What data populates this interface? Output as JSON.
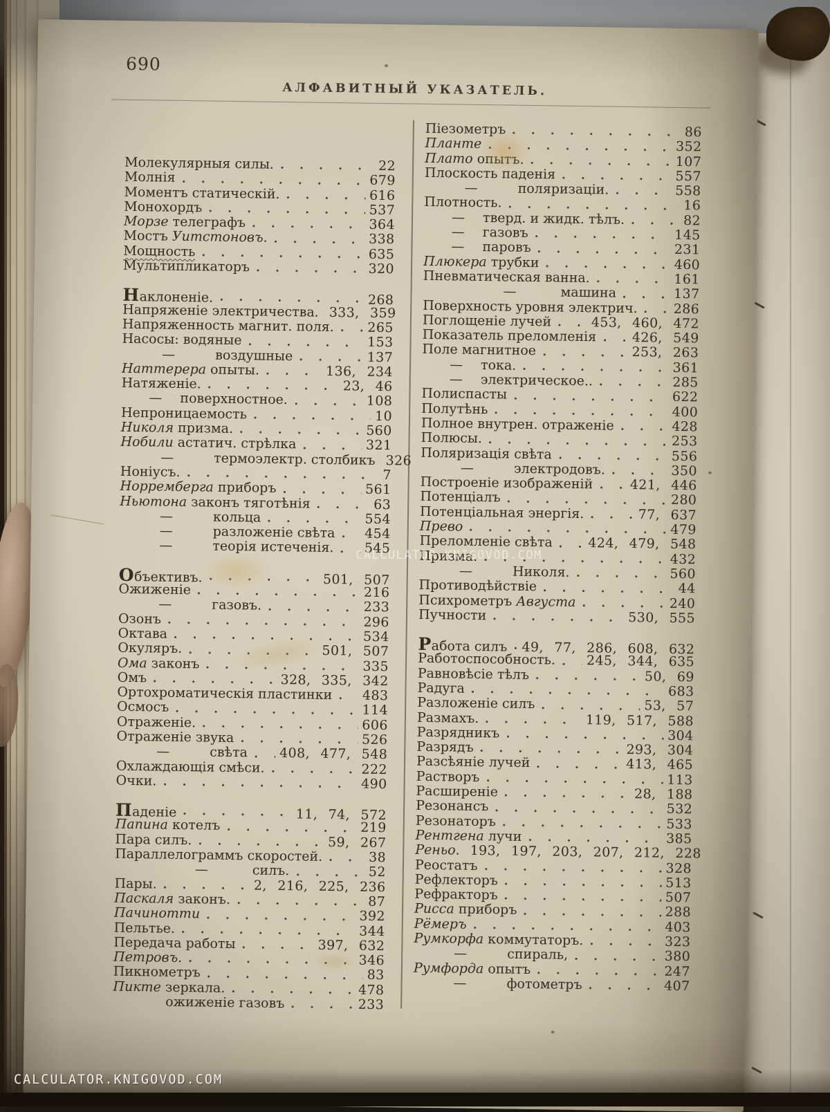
{
  "page": {
    "number": "690",
    "header": "АЛФАВИТНЫЙ УКАЗАТЕЛЬ."
  },
  "watermarks": {
    "center": "CALCULATOR.KNIGOVOD.COM",
    "bottom": "CALCULATOR.KNIGOVOD.COM"
  },
  "colors": {
    "paper": "#cfc7b0",
    "ink": "#352d21",
    "backdrop": "#8e9295",
    "watermark": "#ffffff"
  },
  "index": {
    "left": [
      [
        {
          "t": [
            [
              "Молекулярныя силы.",
              0
            ]
          ],
          "n": "22"
        },
        {
          "t": [
            [
              "Молнія",
              0
            ]
          ],
          "n": "679"
        },
        {
          "t": [
            [
              "Моментъ статическій.",
              0
            ]
          ],
          "n": "616"
        },
        {
          "t": [
            [
              "Монохордъ",
              0
            ]
          ],
          "n": "537"
        },
        {
          "t": [
            [
              "Морзе",
              1
            ],
            [
              " телеграфъ",
              0
            ]
          ],
          "n": "364"
        },
        {
          "t": [
            [
              "Мостъ ",
              0
            ],
            [
              "Уитстоновъ.",
              1
            ]
          ],
          "n": "338"
        },
        {
          "t": [
            [
              "Мощность",
              0
            ]
          ],
          "n": "635",
          "u": true
        },
        {
          "t": [
            [
              "Мультипликаторъ",
              0
            ]
          ],
          "n": "320"
        }
      ],
      [
        {
          "t": [
            [
              "Наклоненіе.",
              0
            ]
          ],
          "n": "268",
          "c": true
        },
        {
          "t": [
            [
              "Напряженіе электричества.",
              0
            ]
          ],
          "n": "333, 359"
        },
        {
          "t": [
            [
              "Напряженность магнит. поля.",
              0
            ]
          ],
          "n": "265"
        },
        {
          "t": [
            [
              "Насосы: водяные",
              0
            ]
          ],
          "n": "153"
        },
        {
          "t": [
            [
              "воздушные",
              0
            ]
          ],
          "n": "137",
          "d": 2
        },
        {
          "t": [
            [
              "Наттерера",
              1
            ],
            [
              " опыты.",
              0
            ]
          ],
          "n": "136, 234"
        },
        {
          "t": [
            [
              "Натяженіе.",
              0
            ]
          ],
          "n": "23, 46"
        },
        {
          "t": [
            [
              "поверхностное.",
              0
            ]
          ],
          "n": "108",
          "d": 1
        },
        {
          "t": [
            [
              "Непроницаемость",
              0
            ]
          ],
          "n": "10"
        },
        {
          "t": [
            [
              "Николя",
              1
            ],
            [
              " призма.",
              0
            ]
          ],
          "n": "560"
        },
        {
          "t": [
            [
              "Нобили",
              1
            ],
            [
              " астатич. стрѣлка",
              0
            ]
          ],
          "n": "321"
        },
        {
          "t": [
            [
              "термоэлектр. столбикъ",
              0
            ]
          ],
          "n": "326",
          "d": 2
        },
        {
          "t": [
            [
              "Ноніусъ.",
              0
            ]
          ],
          "n": "7"
        },
        {
          "t": [
            [
              "Норремберга",
              1
            ],
            [
              " приборъ",
              0
            ]
          ],
          "n": "561"
        },
        {
          "t": [
            [
              "Ньютона",
              1
            ],
            [
              " законъ тяготѣнія",
              0
            ]
          ],
          "n": "63"
        },
        {
          "t": [
            [
              "кольца",
              0
            ]
          ],
          "n": "554",
          "d": 2
        },
        {
          "t": [
            [
              "разложеніе свѣта",
              0
            ]
          ],
          "n": "454",
          "d": 2
        },
        {
          "t": [
            [
              "теорія истеченія.",
              0
            ]
          ],
          "n": "545",
          "d": 2
        }
      ],
      [
        {
          "t": [
            [
              "Объективъ.",
              0
            ]
          ],
          "n": "501, 507",
          "c": true
        },
        {
          "t": [
            [
              "Ожиженіе",
              0
            ]
          ],
          "n": "216"
        },
        {
          "t": [
            [
              "газовъ.",
              0
            ]
          ],
          "n": "233",
          "d": 2
        },
        {
          "t": [
            [
              "Озонъ",
              0
            ]
          ],
          "n": "296"
        },
        {
          "t": [
            [
              "Октава",
              0
            ]
          ],
          "n": "534"
        },
        {
          "t": [
            [
              "Окуляръ.",
              0
            ]
          ],
          "n": "501, 507"
        },
        {
          "t": [
            [
              "Ома",
              1
            ],
            [
              " законъ",
              0
            ]
          ],
          "n": "335"
        },
        {
          "t": [
            [
              "Омъ",
              0
            ]
          ],
          "n": "328, 335, 342"
        },
        {
          "t": [
            [
              "Ортохроматическія пластинки",
              0
            ]
          ],
          "n": "483"
        },
        {
          "t": [
            [
              "Осмосъ",
              0
            ]
          ],
          "n": "114"
        },
        {
          "t": [
            [
              "Отраженіе.",
              0
            ]
          ],
          "n": "606"
        },
        {
          "t": [
            [
              "Отраженіе звука",
              0
            ]
          ],
          "n": "526"
        },
        {
          "t": [
            [
              "свѣта",
              0
            ]
          ],
          "n": "408, 477, 548",
          "d": 2
        },
        {
          "t": [
            [
              "Охлаждающія смѣси.",
              0
            ]
          ],
          "n": "222"
        },
        {
          "t": [
            [
              "Очки.",
              0
            ]
          ],
          "n": "490"
        }
      ],
      [
        {
          "t": [
            [
              "Паденіе",
              0
            ]
          ],
          "n": "11, 74, 572",
          "c": true
        },
        {
          "t": [
            [
              "Папина",
              1
            ],
            [
              " котелъ",
              0
            ]
          ],
          "n": "219"
        },
        {
          "t": [
            [
              "Пара силъ.",
              0
            ]
          ],
          "n": "59, 267"
        },
        {
          "t": [
            [
              "Параллелограммъ скоростей.",
              0
            ]
          ],
          "n": "38"
        },
        {
          "t": [
            [
              "силъ.",
              0
            ]
          ],
          "n": "52",
          "d": 3
        },
        {
          "t": [
            [
              "Пары.",
              0
            ]
          ],
          "n": "2, 216, 225, 236"
        },
        {
          "t": [
            [
              "Паскаля",
              1
            ],
            [
              " законъ.",
              0
            ]
          ],
          "n": "87"
        },
        {
          "t": [
            [
              "Пачинотти",
              1
            ]
          ],
          "n": "392"
        },
        {
          "t": [
            [
              "Пельтье.",
              0
            ]
          ],
          "n": "344"
        },
        {
          "t": [
            [
              "Передача работы",
              0
            ]
          ],
          "n": "397, 632"
        },
        {
          "t": [
            [
              "Петровъ.",
              1
            ]
          ],
          "n": "346"
        },
        {
          "t": [
            [
              "Пикнометръ",
              0
            ]
          ],
          "n": "83"
        },
        {
          "t": [
            [
              "Пикте",
              1
            ],
            [
              " зеркала.",
              0
            ]
          ],
          "n": "478"
        },
        {
          "t": [
            [
              "ожиженіе газовъ",
              0
            ]
          ],
          "n": "233",
          "d": 2,
          "nd": true
        }
      ]
    ],
    "right": [
      [
        {
          "t": [
            [
              "Піезометръ",
              0
            ]
          ],
          "n": "86"
        },
        {
          "t": [
            [
              "Планте",
              1
            ]
          ],
          "n": "352"
        },
        {
          "t": [
            [
              "Плато",
              1
            ],
            [
              " опытъ.",
              0
            ]
          ],
          "n": "107"
        },
        {
          "t": [
            [
              "Плоскость паденія",
              0
            ]
          ],
          "n": "557"
        },
        {
          "t": [
            [
              "поляризаціи.",
              0
            ]
          ],
          "n": "558",
          "d": 2
        },
        {
          "t": [
            [
              "Плотность.",
              0
            ]
          ],
          "n": "16"
        },
        {
          "t": [
            [
              "тверд. и жидк. тѣлъ.",
              0
            ]
          ],
          "n": "82",
          "d": 1
        },
        {
          "t": [
            [
              "газовъ",
              0
            ]
          ],
          "n": "145",
          "d": 1
        },
        {
          "t": [
            [
              "паровъ",
              0
            ]
          ],
          "n": "231",
          "d": 1
        },
        {
          "t": [
            [
              "Плюкера",
              1
            ],
            [
              " трубки",
              0
            ]
          ],
          "n": "460"
        },
        {
          "t": [
            [
              "Пневматическая ванна.",
              0
            ]
          ],
          "n": "161"
        },
        {
          "t": [
            [
              "машина",
              0
            ]
          ],
          "n": "137",
          "d": 3
        },
        {
          "t": [
            [
              "Поверхность уровня электрич.",
              0
            ]
          ],
          "n": "286"
        },
        {
          "t": [
            [
              "Поглощеніе лучей",
              0
            ]
          ],
          "n": "453, 460, 472"
        },
        {
          "t": [
            [
              "Показатель преломленія",
              0
            ]
          ],
          "n": "426, 549"
        },
        {
          "t": [
            [
              "Поле магнитное",
              0
            ]
          ],
          "n": "253, 263"
        },
        {
          "t": [
            [
              "тока.",
              0
            ]
          ],
          "n": "361",
          "d": 1
        },
        {
          "t": [
            [
              "электрическое..",
              0
            ]
          ],
          "n": "285",
          "d": 1
        },
        {
          "t": [
            [
              "Полиспасты",
              0
            ]
          ],
          "n": "622"
        },
        {
          "t": [
            [
              "Полутѣнь",
              0
            ]
          ],
          "n": "400"
        },
        {
          "t": [
            [
              "Полное внутрен. отраженіе",
              0
            ]
          ],
          "n": "428"
        },
        {
          "t": [
            [
              "Полюсы.",
              0
            ]
          ],
          "n": "253"
        },
        {
          "t": [
            [
              "Поляризація свѣта",
              0
            ]
          ],
          "n": "556"
        },
        {
          "t": [
            [
              "электродовъ.",
              0
            ]
          ],
          "n": "350",
          "d": 2
        },
        {
          "t": [
            [
              "Построеніе изображеній",
              0
            ]
          ],
          "n": "421, 446"
        },
        {
          "t": [
            [
              "Потенціалъ",
              0
            ]
          ],
          "n": "280"
        },
        {
          "t": [
            [
              "Потенціальная энергія.",
              0
            ]
          ],
          "n": "77, 637"
        },
        {
          "t": [
            [
              "Прево",
              1
            ]
          ],
          "n": "479"
        },
        {
          "t": [
            [
              "Преломленіе свѣта",
              0
            ]
          ],
          "n": "424, 479, 548"
        },
        {
          "t": [
            [
              "Призма.",
              0
            ]
          ],
          "n": "432"
        },
        {
          "t": [
            [
              "Николя.",
              0
            ]
          ],
          "n": "560",
          "d": 2
        },
        {
          "t": [
            [
              "Противодѣйствіе",
              0
            ]
          ],
          "n": "44"
        },
        {
          "t": [
            [
              "Психрометръ ",
              0
            ],
            [
              "Августа",
              1
            ]
          ],
          "n": "240"
        },
        {
          "t": [
            [
              "Пучности",
              0
            ]
          ],
          "n": "530, 555"
        }
      ],
      [
        {
          "t": [
            [
              "Работа силъ",
              0
            ]
          ],
          "n": "49, 77, 286, 608, 632",
          "c": true
        },
        {
          "t": [
            [
              "Работоспособность.",
              0
            ]
          ],
          "n": "245, 344, 635"
        },
        {
          "t": [
            [
              "Равновѣсіе тѣлъ",
              0
            ]
          ],
          "n": "50, 69"
        },
        {
          "t": [
            [
              "Радуга",
              0
            ]
          ],
          "n": "683"
        },
        {
          "t": [
            [
              "Разложеніе силъ",
              0
            ]
          ],
          "n": "53, 57"
        },
        {
          "t": [
            [
              "Размахъ.",
              0
            ]
          ],
          "n": "119, 517, 588"
        },
        {
          "t": [
            [
              "Разрядникъ",
              0
            ]
          ],
          "n": "304"
        },
        {
          "t": [
            [
              "Разрядъ",
              0
            ]
          ],
          "n": "293, 304"
        },
        {
          "t": [
            [
              "Разсѣяніе лучей",
              0
            ]
          ],
          "n": "413, 465"
        },
        {
          "t": [
            [
              "Растворъ",
              0
            ]
          ],
          "n": "113"
        },
        {
          "t": [
            [
              "Расширеніе",
              0
            ]
          ],
          "n": "28, 188"
        },
        {
          "t": [
            [
              "Резонансъ",
              0
            ]
          ],
          "n": "532"
        },
        {
          "t": [
            [
              "Резонаторъ",
              0
            ]
          ],
          "n": "533"
        },
        {
          "t": [
            [
              "Рентгена",
              1
            ],
            [
              " лучи",
              0
            ]
          ],
          "n": "385"
        },
        {
          "t": [
            [
              "Реньо.",
              1
            ]
          ],
          "n": "193, 197, 203, 207, 212, 228"
        },
        {
          "t": [
            [
              "Реостатъ",
              0
            ]
          ],
          "n": "328"
        },
        {
          "t": [
            [
              "Рефлекторъ",
              0
            ]
          ],
          "n": "513"
        },
        {
          "t": [
            [
              "Рефракторъ",
              0
            ]
          ],
          "n": "507"
        },
        {
          "t": [
            [
              "Рисса",
              1
            ],
            [
              " приборъ",
              0
            ]
          ],
          "n": "288"
        },
        {
          "t": [
            [
              "Рёмеръ",
              1
            ]
          ],
          "n": "403"
        },
        {
          "t": [
            [
              "Румкорфа",
              1
            ],
            [
              " коммутаторъ.",
              0
            ]
          ],
          "n": "323"
        },
        {
          "t": [
            [
              "спираль,",
              0
            ]
          ],
          "n": "380",
          "d": 2
        },
        {
          "t": [
            [
              "Румфорда",
              1
            ],
            [
              " опытъ",
              0
            ]
          ],
          "n": "247"
        },
        {
          "t": [
            [
              "фотометръ",
              0
            ]
          ],
          "n": "407",
          "d": 2
        }
      ]
    ]
  }
}
